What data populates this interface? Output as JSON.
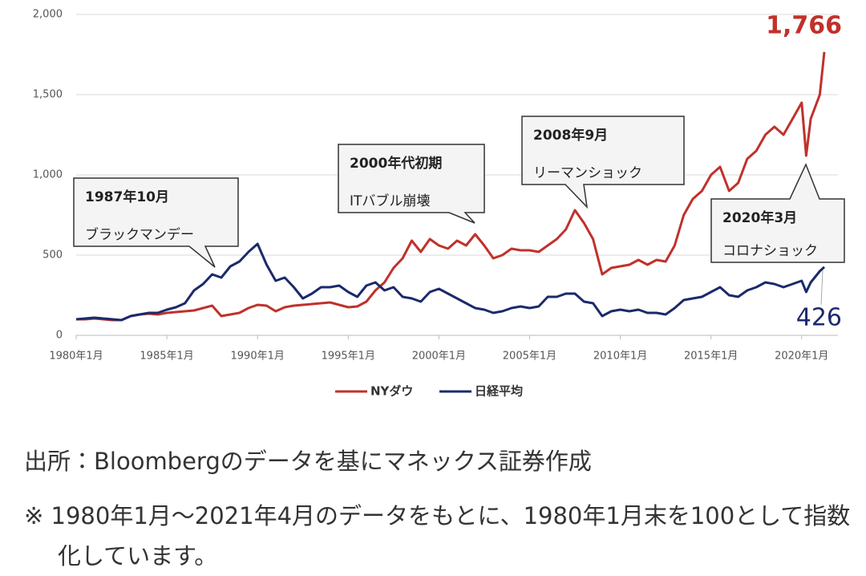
{
  "chart_data": {
    "type": "line",
    "x": [
      "1980-01",
      "1980-07",
      "1981-01",
      "1981-07",
      "1982-01",
      "1982-07",
      "1983-01",
      "1983-07",
      "1984-01",
      "1984-07",
      "1985-01",
      "1985-07",
      "1986-01",
      "1986-07",
      "1987-01",
      "1987-07",
      "1988-01",
      "1988-07",
      "1989-01",
      "1989-07",
      "1990-01",
      "1990-07",
      "1991-01",
      "1991-07",
      "1992-01",
      "1992-07",
      "1993-01",
      "1993-07",
      "1994-01",
      "1994-07",
      "1995-01",
      "1995-07",
      "1996-01",
      "1996-07",
      "1997-01",
      "1997-07",
      "1998-01",
      "1998-07",
      "1999-01",
      "1999-07",
      "2000-01",
      "2000-07",
      "2001-01",
      "2001-07",
      "2002-01",
      "2002-07",
      "2003-01",
      "2003-07",
      "2004-01",
      "2004-07",
      "2005-01",
      "2005-07",
      "2006-01",
      "2006-07",
      "2007-01",
      "2007-07",
      "2008-01",
      "2008-07",
      "2009-01",
      "2009-07",
      "2010-01",
      "2010-07",
      "2011-01",
      "2011-07",
      "2012-01",
      "2012-07",
      "2013-01",
      "2013-07",
      "2014-01",
      "2014-07",
      "2015-01",
      "2015-07",
      "2016-01",
      "2016-07",
      "2017-01",
      "2017-07",
      "2018-01",
      "2018-07",
      "2019-01",
      "2019-07",
      "2020-01",
      "2020-04",
      "2020-07",
      "2021-01",
      "2021-04"
    ],
    "series": [
      {
        "name": "NYダウ",
        "color": "#c0312b",
        "values": [
          100,
          100,
          105,
          100,
          95,
          95,
          120,
          130,
          135,
          130,
          140,
          145,
          150,
          155,
          170,
          185,
          120,
          130,
          140,
          170,
          190,
          185,
          150,
          175,
          185,
          190,
          195,
          200,
          205,
          190,
          175,
          180,
          210,
          280,
          330,
          420,
          480,
          590,
          520,
          600,
          560,
          540,
          590,
          560,
          630,
          560,
          480,
          500,
          540,
          530,
          530,
          520,
          560,
          600,
          660,
          780,
          700,
          600,
          380,
          420,
          430,
          440,
          470,
          440,
          470,
          460,
          560,
          750,
          850,
          900,
          1000,
          1050,
          900,
          950,
          1100,
          1150,
          1250,
          1300,
          1250,
          1350,
          1450,
          1120,
          1350,
          1500,
          1766
        ],
        "value_labels": [
          null,
          null,
          null,
          null,
          null,
          null,
          null,
          null,
          null,
          null,
          null,
          null,
          null,
          null,
          null,
          null,
          null,
          null,
          null,
          null,
          null,
          null,
          null,
          null,
          null,
          null,
          null,
          null,
          null,
          null,
          null,
          null,
          null,
          null,
          null,
          null,
          null,
          null,
          null,
          null,
          null,
          null,
          null,
          null,
          null,
          null,
          null,
          null,
          null,
          null,
          null,
          null,
          null,
          null,
          null,
          null,
          null,
          null,
          null,
          null,
          null,
          null,
          null,
          null,
          null,
          null,
          null,
          null,
          null,
          null,
          null,
          null,
          null,
          null,
          null,
          null,
          null,
          null,
          null,
          null,
          null,
          null,
          null,
          null,
          "1,766"
        ]
      },
      {
        "name": "日経平均",
        "color": "#1b2a6b",
        "values": [
          100,
          105,
          110,
          105,
          100,
          95,
          120,
          130,
          140,
          140,
          160,
          175,
          200,
          280,
          320,
          380,
          360,
          430,
          460,
          520,
          570,
          440,
          340,
          360,
          300,
          230,
          260,
          300,
          300,
          310,
          270,
          240,
          310,
          330,
          280,
          300,
          240,
          230,
          210,
          270,
          290,
          260,
          230,
          200,
          170,
          160,
          140,
          150,
          170,
          180,
          170,
          180,
          240,
          240,
          260,
          260,
          210,
          200,
          120,
          150,
          160,
          150,
          160,
          140,
          140,
          130,
          170,
          220,
          230,
          240,
          270,
          300,
          250,
          240,
          280,
          300,
          330,
          320,
          300,
          320,
          340,
          270,
          330,
          400,
          426
        ]
      }
    ],
    "xlim": [
      "1980-01",
      "2022-01"
    ],
    "xticks": [
      {
        "value": "1980-01",
        "label": "1980年1月"
      },
      {
        "value": "1985-01",
        "label": "1985年1月"
      },
      {
        "value": "1990-01",
        "label": "1990年1月"
      },
      {
        "value": "1995-01",
        "label": "1995年1月"
      },
      {
        "value": "2000-01",
        "label": "2000年1月"
      },
      {
        "value": "2005-01",
        "label": "2005年1月"
      },
      {
        "value": "2010-01",
        "label": "2010年1月"
      },
      {
        "value": "2015-01",
        "label": "2015年1月"
      },
      {
        "value": "2020-01",
        "label": "2020年1月"
      }
    ],
    "ylim": [
      0,
      2000
    ],
    "yticks": [
      0,
      500,
      {
        "value": 1000,
        "label": "1,000"
      },
      {
        "value": 1500,
        "label": "1,500"
      },
      {
        "value": 2000,
        "label": "2,000"
      }
    ],
    "grid": true,
    "legend": "bottom",
    "annotations": [
      {
        "lines": [
          "1987年10月",
          "ブラックマンデー"
        ]
      },
      {
        "lines": [
          "2000年代初期",
          "ITバブル崩壊"
        ]
      },
      {
        "lines": [
          "2008年9月",
          "リーマンショック"
        ]
      },
      {
        "lines": [
          "2020年3月",
          "コロナショック"
        ]
      }
    ]
  },
  "source": "出所：Bloombergのデータを基にマネックス証券作成",
  "note": "※ 1980年1月〜2021年4月のデータをもとに、1980年1月末を100として指数化しています。"
}
